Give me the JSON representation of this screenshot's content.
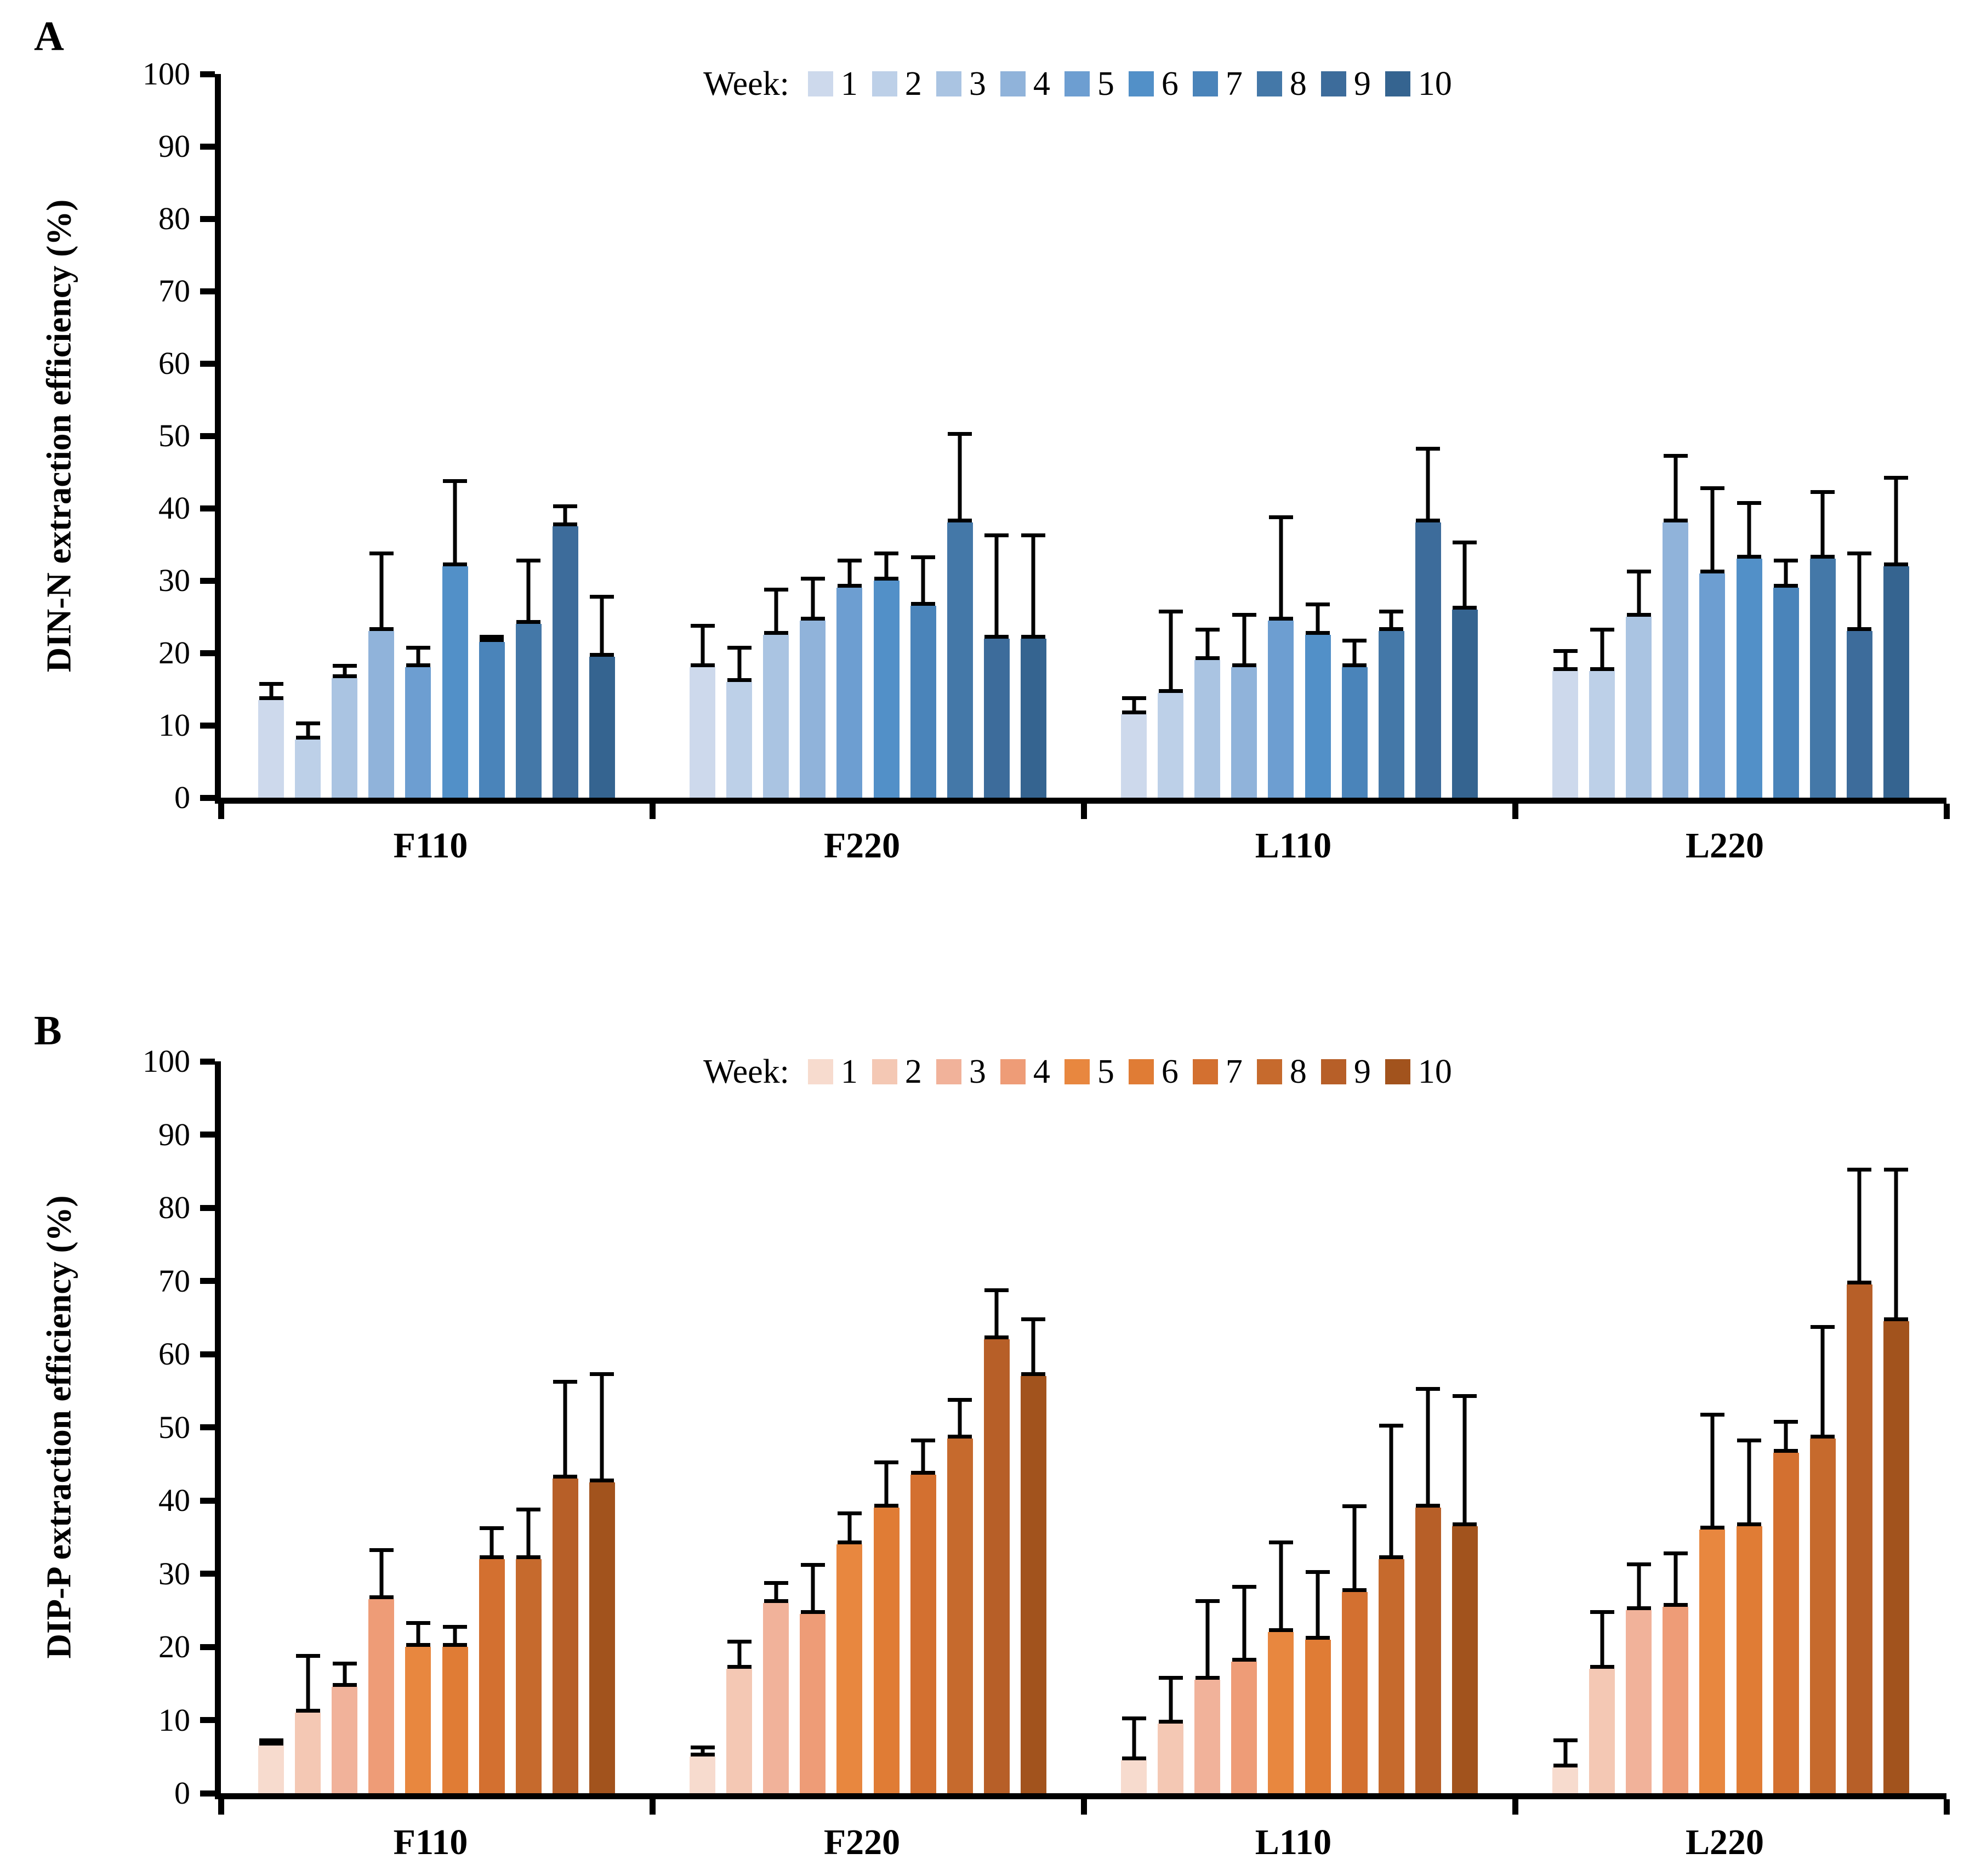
{
  "chart_data": [
    {
      "type": "bar",
      "panel_label": "A",
      "ylabel": "DIN-N extraction efficiency (%)",
      "xlabel": "",
      "ylim": [
        0,
        100
      ],
      "ytick_labels": [
        "0",
        "10",
        "20",
        "30",
        "40",
        "50",
        "60",
        "70",
        "80",
        "90",
        "100"
      ],
      "grid": false,
      "legend_title": "Week:",
      "legend_position": "top-center",
      "error_bars": "upper only, black whisker with end caps",
      "weeks": [
        "1",
        "2",
        "3",
        "4",
        "5",
        "6",
        "7",
        "8",
        "9",
        "10"
      ],
      "colors": [
        "#cdd9ec",
        "#bdd0e8",
        "#aac4e2",
        "#90b3da",
        "#6d9ed1",
        "#5290c8",
        "#4a84ba",
        "#4478a8",
        "#3d6c9b",
        "#356490"
      ],
      "categories": [
        "F110",
        "F220",
        "L110",
        "L220"
      ],
      "groups": [
        {
          "label": "F110",
          "values": [
            13.5,
            8,
            16.5,
            23,
            18,
            32,
            21.5,
            24,
            37.5,
            19.5
          ],
          "errors_upper": [
            2.5,
            2.5,
            2,
            11,
            3,
            12,
            1,
            9,
            3,
            8.5
          ]
        },
        {
          "label": "F220",
          "values": [
            18,
            16,
            22.5,
            24.5,
            29,
            30,
            26.5,
            38,
            22,
            22
          ],
          "errors_upper": [
            6,
            5,
            6.5,
            6,
            4,
            4,
            7,
            12.5,
            14.5,
            14.5
          ]
        },
        {
          "label": "L110",
          "values": [
            11.5,
            14.5,
            19,
            18,
            24.5,
            22.5,
            18,
            23,
            38,
            26
          ],
          "errors_upper": [
            2.5,
            11.5,
            4.5,
            7.5,
            14.5,
            4.5,
            4,
            3,
            10.5,
            9.5
          ]
        },
        {
          "label": "L220",
          "values": [
            17.5,
            17.5,
            25,
            38,
            31,
            33,
            29,
            33,
            23,
            32
          ],
          "errors_upper": [
            3,
            6,
            6.5,
            9.5,
            12,
            8,
            4,
            9.5,
            11,
            12.5
          ]
        }
      ]
    },
    {
      "type": "bar",
      "panel_label": "B",
      "ylabel": "DIP-P extraction efficiency (%)",
      "xlabel": "",
      "ylim": [
        0,
        100
      ],
      "ytick_labels": [
        "0",
        "10",
        "20",
        "30",
        "40",
        "50",
        "60",
        "70",
        "80",
        "90",
        "100"
      ],
      "grid": false,
      "legend_title": "Week:",
      "legend_position": "top-center",
      "error_bars": "upper only, black whisker with end caps",
      "weeks": [
        "1",
        "2",
        "3",
        "4",
        "5",
        "6",
        "7",
        "8",
        "9",
        "10"
      ],
      "colors": [
        "#f7dbce",
        "#f4c8b4",
        "#f1b29a",
        "#ee9c77",
        "#e8873f",
        "#e07c35",
        "#d37030",
        "#c66a2d",
        "#b75f28",
        "#a2531d"
      ],
      "categories": [
        "F110",
        "F220",
        "L110",
        "L220"
      ],
      "groups": [
        {
          "label": "F110",
          "values": [
            6.5,
            11,
            14.5,
            26.5,
            20,
            20,
            32,
            32,
            43,
            42.5
          ],
          "errors_upper": [
            1,
            8,
            3.5,
            7,
            3.5,
            3,
            4.5,
            7,
            13.5,
            15
          ]
        },
        {
          "label": "F220",
          "values": [
            5,
            17,
            26,
            24.5,
            34,
            39,
            43.5,
            48.5,
            62,
            57
          ],
          "errors_upper": [
            1.5,
            4,
            3,
            7,
            4.5,
            6.5,
            5,
            5.5,
            7,
            8
          ]
        },
        {
          "label": "L110",
          "values": [
            4.5,
            9.5,
            15.5,
            18,
            22,
            21,
            27.5,
            32,
            39,
            36.5
          ],
          "errors_upper": [
            6,
            6.5,
            11,
            10.5,
            12.5,
            9.5,
            12,
            18.5,
            16.5,
            18
          ]
        },
        {
          "label": "L220",
          "values": [
            3.5,
            17,
            25,
            25.5,
            36,
            36.5,
            46.5,
            48.5,
            69.5,
            64.5
          ],
          "errors_upper": [
            4,
            8,
            6.5,
            7.5,
            16,
            12,
            4.5,
            15.5,
            16,
            21
          ]
        }
      ]
    }
  ]
}
